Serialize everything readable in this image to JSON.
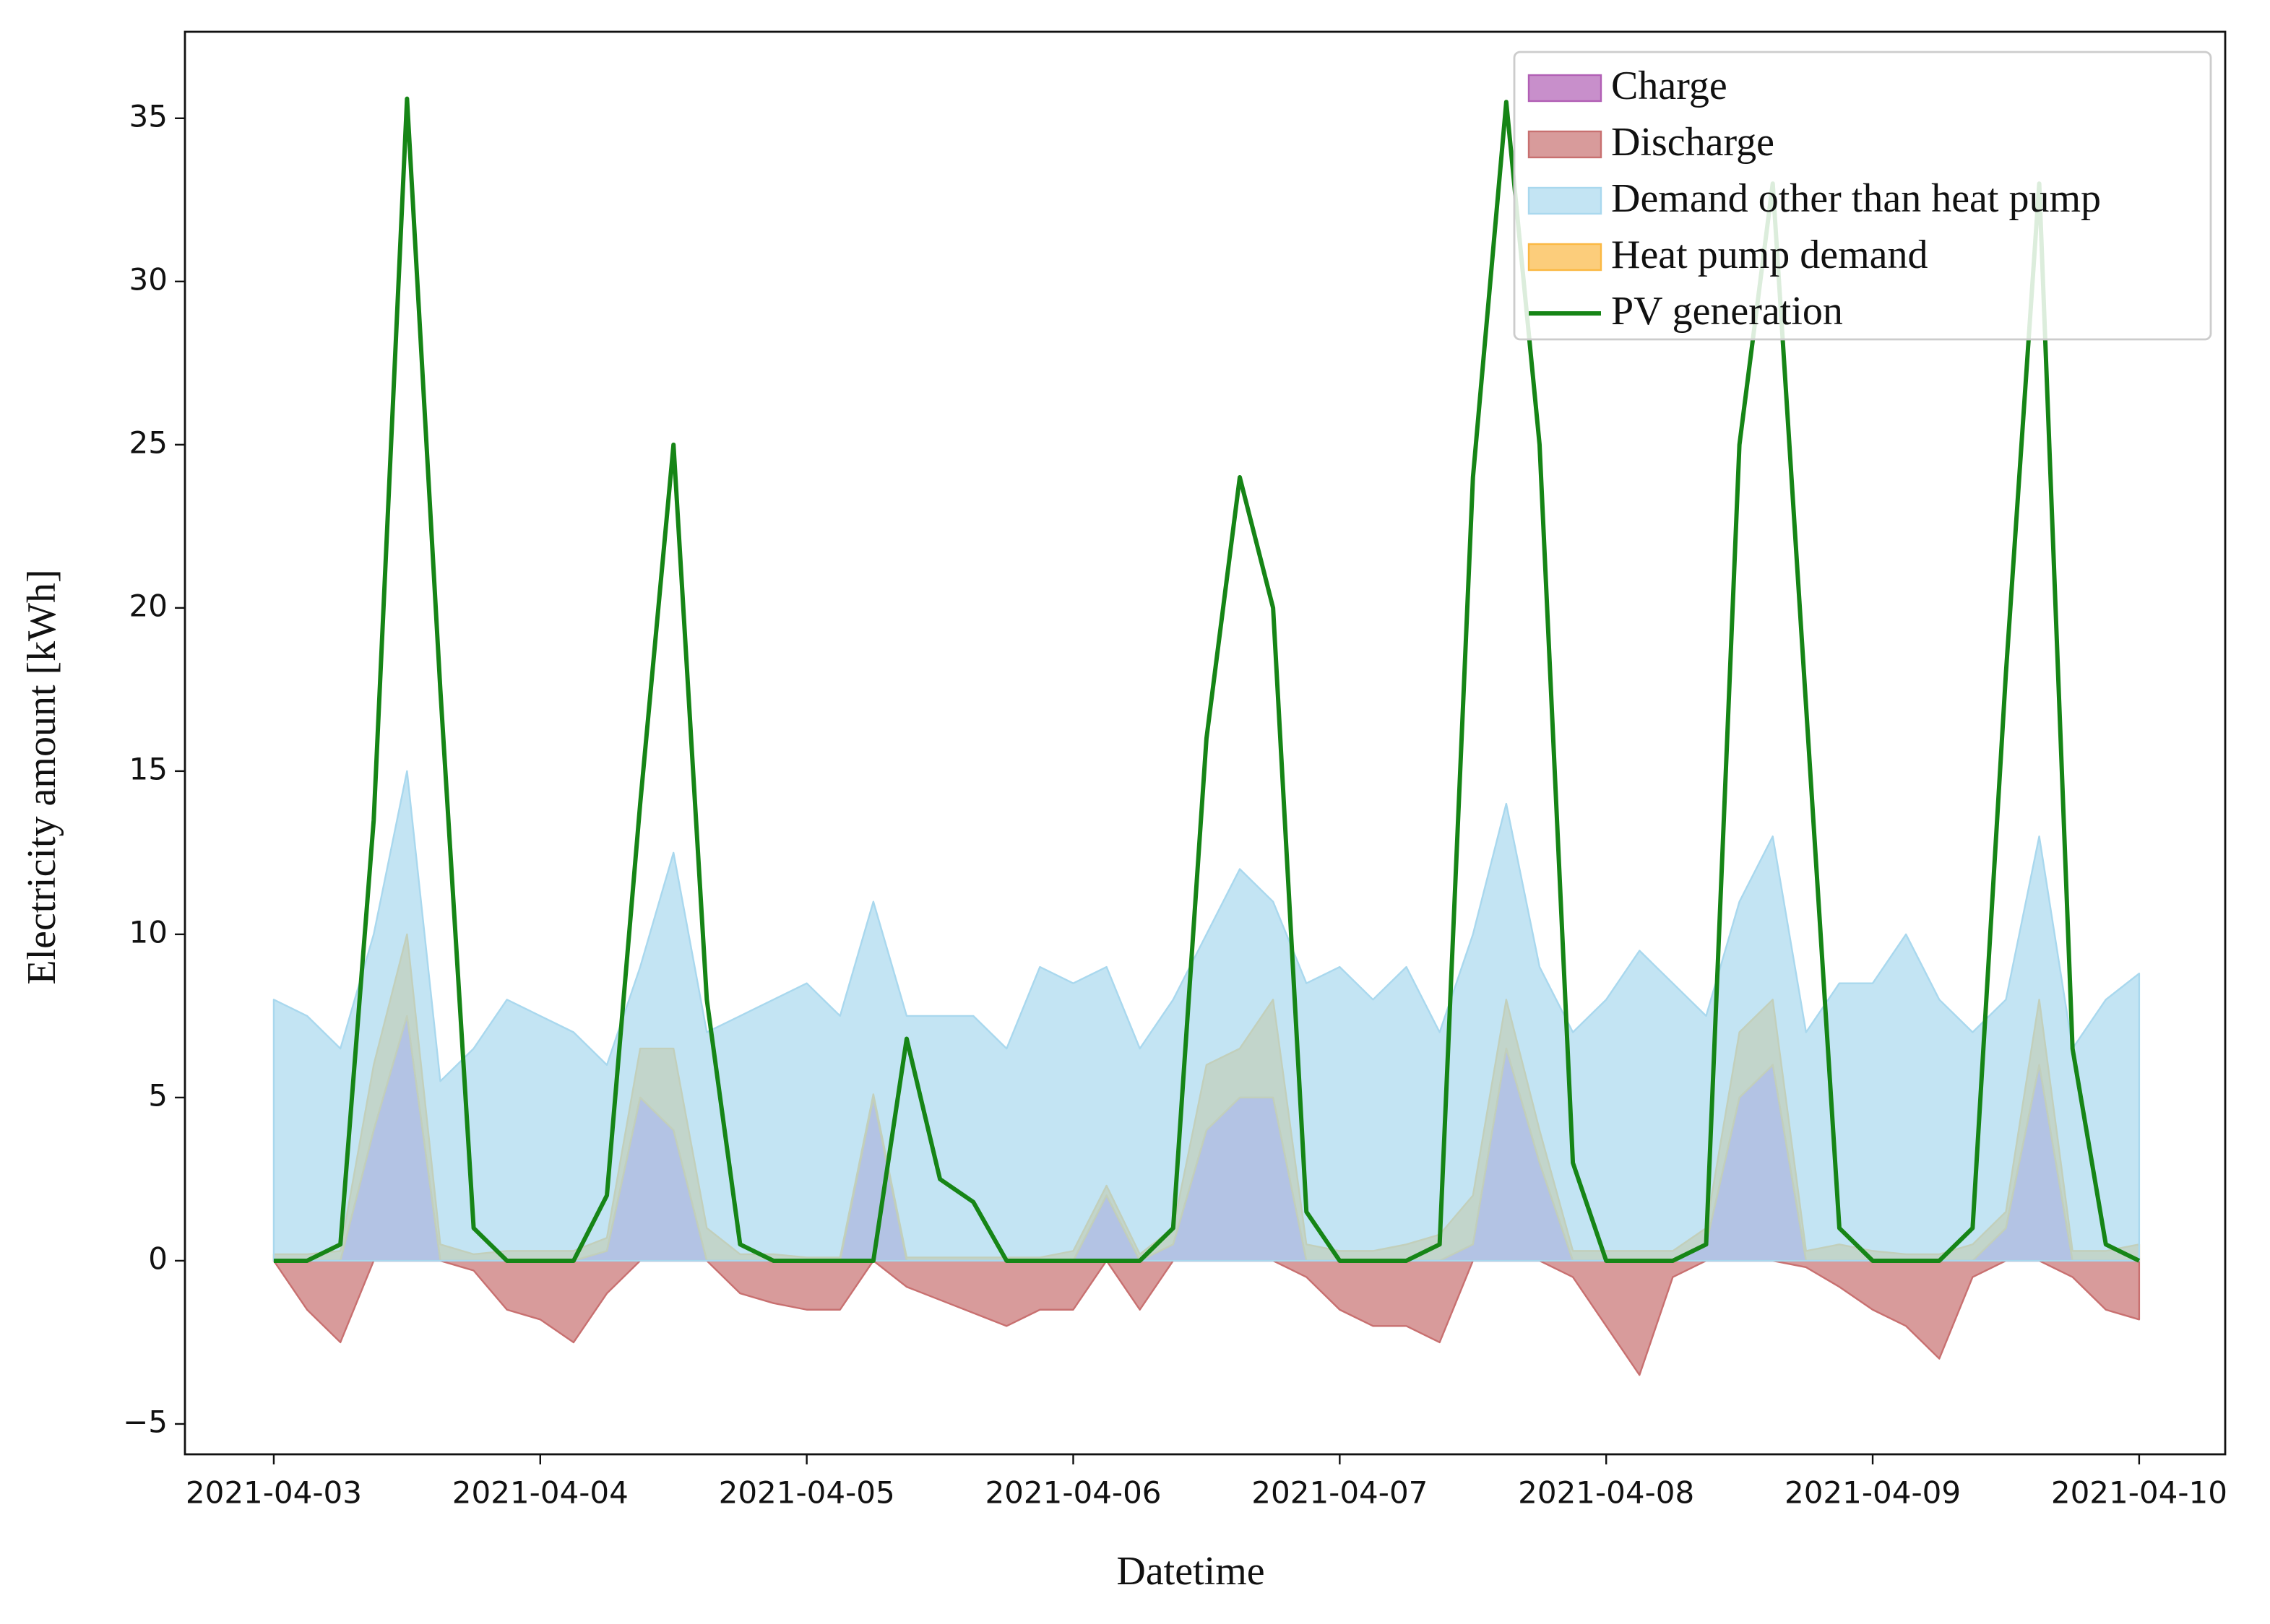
{
  "chart_data": {
    "type": "area",
    "xlabel": "Datetime",
    "ylabel": "Electricity amount [kWh]",
    "x": [
      "2021-04-03T00:00",
      "2021-04-03T03:00",
      "2021-04-03T06:00",
      "2021-04-03T09:00",
      "2021-04-03T12:00",
      "2021-04-03T15:00",
      "2021-04-03T18:00",
      "2021-04-03T21:00",
      "2021-04-04T00:00",
      "2021-04-04T03:00",
      "2021-04-04T06:00",
      "2021-04-04T09:00",
      "2021-04-04T12:00",
      "2021-04-04T15:00",
      "2021-04-04T18:00",
      "2021-04-04T21:00",
      "2021-04-05T00:00",
      "2021-04-05T03:00",
      "2021-04-05T06:00",
      "2021-04-05T09:00",
      "2021-04-05T12:00",
      "2021-04-05T15:00",
      "2021-04-05T18:00",
      "2021-04-05T21:00",
      "2021-04-06T00:00",
      "2021-04-06T03:00",
      "2021-04-06T06:00",
      "2021-04-06T09:00",
      "2021-04-06T12:00",
      "2021-04-06T15:00",
      "2021-04-06T18:00",
      "2021-04-06T21:00",
      "2021-04-07T00:00",
      "2021-04-07T03:00",
      "2021-04-07T06:00",
      "2021-04-07T09:00",
      "2021-04-07T12:00",
      "2021-04-07T15:00",
      "2021-04-07T18:00",
      "2021-04-07T21:00",
      "2021-04-08T00:00",
      "2021-04-08T03:00",
      "2021-04-08T06:00",
      "2021-04-08T09:00",
      "2021-04-08T12:00",
      "2021-04-08T15:00",
      "2021-04-08T18:00",
      "2021-04-08T21:00",
      "2021-04-09T00:00",
      "2021-04-09T03:00",
      "2021-04-09T06:00",
      "2021-04-09T09:00",
      "2021-04-09T12:00",
      "2021-04-09T15:00",
      "2021-04-09T18:00",
      "2021-04-09T21:00",
      "2021-04-10T00:00"
    ],
    "series": [
      {
        "name": "Charge",
        "color": "#b15fb5",
        "kind": "area",
        "values": [
          0,
          0,
          0,
          4,
          7.5,
          0,
          0,
          0,
          0,
          0,
          0.3,
          5,
          4,
          0,
          0,
          0,
          0,
          0,
          5,
          0,
          0,
          0,
          0,
          0,
          0,
          2,
          0,
          0.5,
          4,
          5,
          5,
          0,
          0,
          0,
          0,
          0,
          0.5,
          6.5,
          3,
          0,
          0,
          0,
          0,
          0.5,
          5,
          6,
          0,
          0,
          0,
          0,
          0,
          0,
          1,
          6,
          0,
          0,
          0
        ]
      },
      {
        "name": "Discharge",
        "color": "#c87070",
        "kind": "area",
        "values": [
          0,
          -1.5,
          -2.5,
          0,
          0,
          0,
          -0.3,
          -1.5,
          -1.8,
          -2.5,
          -1,
          0,
          0,
          0,
          -1,
          -1.3,
          -1.5,
          -1.5,
          0,
          -0.8,
          -1.2,
          -1.6,
          -2,
          -1.5,
          -1.5,
          0,
          -1.5,
          0,
          0,
          0,
          0,
          -0.5,
          -1.5,
          -2,
          -2,
          -2.5,
          0,
          0,
          0,
          -0.5,
          -2,
          -3.5,
          -0.5,
          0,
          0,
          0,
          -0.2,
          -0.8,
          -1.5,
          -2,
          -3,
          -0.5,
          0,
          0,
          -0.5,
          -1.5,
          -1.8
        ]
      },
      {
        "name": "Demand other than heat pump",
        "color": "#a9d8ee",
        "kind": "area",
        "values": [
          8,
          7.5,
          6.5,
          10,
          15,
          5.5,
          6.5,
          8,
          7.5,
          7,
          6,
          9,
          12.5,
          7,
          7.5,
          8,
          8.5,
          7.5,
          11,
          7.5,
          7.5,
          7.5,
          6.5,
          9,
          8.5,
          9,
          6.5,
          8,
          10,
          12,
          11,
          8.5,
          9,
          8,
          9,
          7,
          10,
          14,
          9,
          7,
          8,
          9.5,
          8.5,
          7.5,
          11,
          13,
          7,
          8.5,
          8.5,
          10,
          8,
          7,
          8,
          13,
          6.5,
          8,
          8.8
        ]
      },
      {
        "name": "Heat pump demand",
        "color": "#fbb843",
        "kind": "stacked",
        "values": [
          0.2,
          0.2,
          0.3,
          2,
          2.5,
          0.5,
          0.2,
          0.3,
          0.3,
          0.3,
          0.4,
          1.5,
          2.5,
          1,
          0.2,
          0.2,
          0.1,
          0.1,
          0.1,
          0.1,
          0.1,
          0.1,
          0.1,
          0.1,
          0.3,
          0.3,
          0.2,
          0.5,
          2,
          1.5,
          3,
          0.5,
          0.3,
          0.3,
          0.5,
          0.8,
          1.5,
          1.5,
          1,
          0.3,
          0.3,
          0.3,
          0.3,
          0.5,
          2,
          2,
          0.3,
          0.5,
          0.3,
          0.2,
          0.2,
          0.5,
          0.5,
          2,
          0.3,
          0.3,
          0.5
        ]
      },
      {
        "name": "PV generation",
        "color": "#168516",
        "kind": "line",
        "values": [
          0,
          0,
          0.5,
          13.5,
          35.6,
          17.5,
          1,
          0,
          0,
          0,
          2,
          14,
          25,
          8,
          0.5,
          0,
          0,
          0,
          0,
          6.8,
          2.5,
          1.8,
          0,
          0,
          0,
          0,
          0,
          1,
          16,
          24,
          20,
          1.5,
          0,
          0,
          0,
          0.5,
          24,
          35.5,
          25,
          3,
          0,
          0,
          0,
          0.5,
          25,
          33,
          17,
          1,
          0,
          0,
          0,
          1,
          18,
          33,
          6.5,
          0.5,
          0
        ]
      }
    ],
    "xlim": [
      "2021-04-02T16:00",
      "2021-04-10T07:45"
    ],
    "xticks": [
      "2021-04-03",
      "2021-04-04",
      "2021-04-05",
      "2021-04-06",
      "2021-04-07",
      "2021-04-08",
      "2021-04-09",
      "2021-04-10"
    ],
    "ylim": [
      -5.93,
      37.65
    ],
    "yticks": [
      {
        "value": -5,
        "label": "−5"
      },
      0,
      5,
      10,
      15,
      20,
      25,
      30,
      35
    ],
    "legend": "upper right"
  }
}
